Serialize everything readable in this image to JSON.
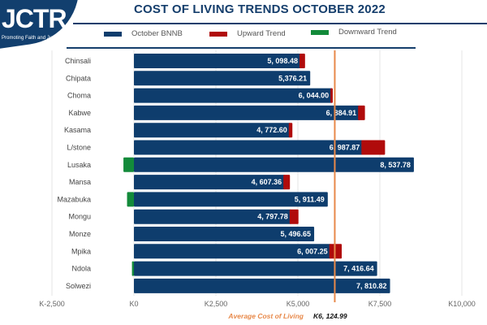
{
  "logo": {
    "text": "JCTR",
    "tagline": "Promoting Faith and Justice"
  },
  "chart_data": {
    "type": "bar",
    "orientation": "horizontal",
    "stacked": true,
    "title": "COST OF LIVING TRENDS OCTOBER 2022",
    "categories": [
      "Chinsali",
      "Chipata",
      "Choma",
      "Kabwe",
      "Kasama",
      "L/stone",
      "Lusaka",
      "Mansa",
      "Mazabuka",
      "Mongu",
      "Monze",
      "Mpika",
      "Ndola",
      "Solwezi"
    ],
    "series": [
      {
        "name": "October BNNB",
        "color": "#0e3d6d",
        "values": [
          5098.48,
          5376.21,
          6044.0,
          6884.91,
          4772.6,
          6987.87,
          8537.78,
          4607.36,
          5911.49,
          4797.78,
          5496.65,
          6007.25,
          7416.64,
          7810.82
        ]
      },
      {
        "name": "Upward Trend",
        "color": "#b00b0b",
        "values": [
          120,
          0,
          20,
          160,
          60,
          670,
          0,
          150,
          0,
          220,
          0,
          330,
          0,
          0
        ]
      },
      {
        "name": "Downward Trend",
        "color": "#138a3a",
        "values": [
          0,
          0,
          0,
          0,
          0,
          0,
          -320,
          0,
          -210,
          0,
          0,
          0,
          -60,
          0
        ]
      }
    ],
    "data_labels": [
      "5, 098.48",
      "5,376.21",
      "6, 044.00",
      "6, 884.91",
      "4, 772.60",
      "6, 987.87",
      "8, 537.78",
      "4, 607.36",
      "5, 911.49",
      "4, 797.78",
      "5, 496.65",
      "6, 007.25",
      "7, 416.64",
      "7, 810.82"
    ],
    "xlim": [
      -2500,
      10000
    ],
    "xticks": [
      -2500,
      0,
      2500,
      5000,
      7500,
      10000
    ],
    "xtick_labels": [
      "K-2,500",
      "K0",
      "K2,500",
      "K5,000",
      "K7,500",
      "K10,000"
    ],
    "grid": true,
    "legend": "top",
    "reference_line": {
      "value": 6124.99,
      "label": "Average Cost of Living",
      "value_label": "K6, 124.99",
      "color": "#e8894a"
    }
  }
}
